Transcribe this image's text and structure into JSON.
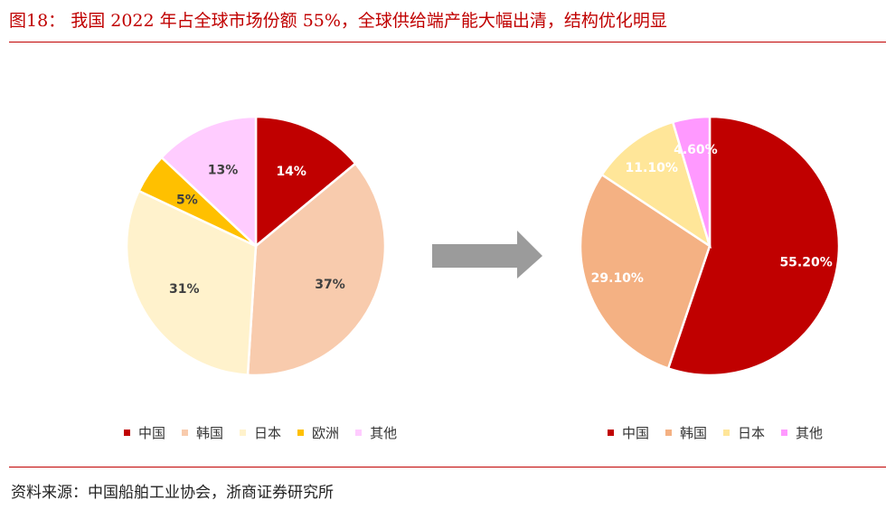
{
  "header": {
    "title": "图18：  我国 2022 年占全球市场份额 55%，全球供给端产能大幅出清，结构优化明显"
  },
  "footer": {
    "source": "资料来源：中国船舶工业协会，浙商证券研究所"
  },
  "arrow": {
    "color": "#9b9b9b",
    "icon": "right-arrow-icon"
  },
  "chart_data": [
    {
      "type": "pie",
      "title": "",
      "slices": [
        {
          "name": "中国",
          "value": 14,
          "label": "14%",
          "color": "#c00000",
          "label_color": "#ffffff"
        },
        {
          "name": "韩国",
          "value": 37,
          "label": "37%",
          "color": "#f8cbad",
          "label_color": "#404040"
        },
        {
          "name": "日本",
          "value": 31,
          "label": "31%",
          "color": "#fff2cc",
          "label_color": "#404040"
        },
        {
          "name": "欧洲",
          "value": 5,
          "label": "5%",
          "color": "#ffc000",
          "label_color": "#404040"
        },
        {
          "name": "其他",
          "value": 13,
          "label": "13%",
          "color": "#ffccff",
          "label_color": "#404040"
        }
      ],
      "legend": [
        "中国",
        "韩国",
        "日本",
        "欧洲",
        "其他"
      ],
      "legend_position": "bottom"
    },
    {
      "type": "pie",
      "title": "",
      "slices": [
        {
          "name": "中国",
          "value": 55.2,
          "label": "55.20%",
          "color": "#c00000",
          "label_color": "#ffffff"
        },
        {
          "name": "韩国",
          "value": 29.1,
          "label": "29.10%",
          "color": "#f4b183",
          "label_color": "#ffffff"
        },
        {
          "name": "日本",
          "value": 11.1,
          "label": "11.10%",
          "color": "#ffe699",
          "label_color": "#ffffff"
        },
        {
          "name": "其他",
          "value": 4.6,
          "label": "4.60%",
          "color": "#ff99ff",
          "label_color": "#ffffff"
        }
      ],
      "legend": [
        "中国",
        "韩国",
        "日本",
        "其他"
      ],
      "legend_position": "bottom"
    }
  ]
}
